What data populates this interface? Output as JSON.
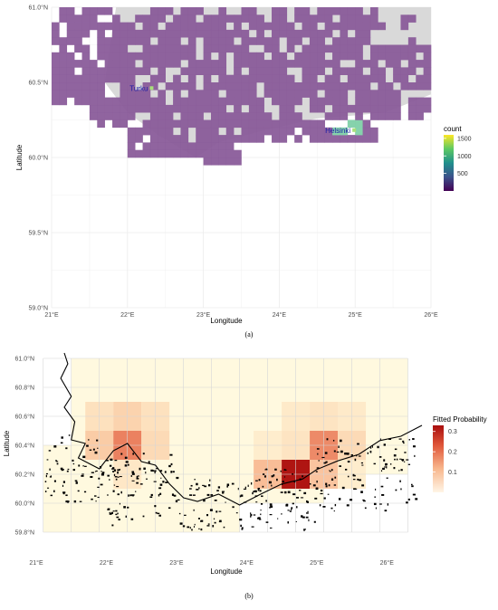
{
  "chart_data": [
    {
      "panel": "(a)",
      "type": "heatmap",
      "xlabel": "Longitude",
      "ylabel": "Latitude",
      "x_ticks": [
        "21°E",
        "22°E",
        "23°E",
        "24°E",
        "25°E",
        "26°E"
      ],
      "y_ticks": [
        "59.0°N",
        "59.5°N",
        "60.0°N",
        "60.5°N",
        "61.0°N"
      ],
      "xlim": [
        21,
        26
      ],
      "ylim": [
        59.0,
        61.0
      ],
      "grid": true,
      "legend": {
        "title": "count",
        "ticks": [
          "1500",
          "1000",
          "500"
        ],
        "tick_values": [
          1500,
          1000,
          500
        ],
        "range": [
          0,
          1600
        ],
        "placement": "right"
      },
      "cities": [
        {
          "name": "Turku",
          "lon": 22.27,
          "lat": 60.45
        },
        {
          "name": "Helsinki",
          "lon": 24.94,
          "lat": 60.17
        }
      ],
      "colors": {
        "cell": "#8a5c9a",
        "land": "#d9d9d9",
        "hot": "#7fd0a8"
      }
    },
    {
      "panel": "(b)",
      "type": "heatmap",
      "xlabel": "Longitude",
      "ylabel": "Latitude",
      "x_ticks": [
        "21°E",
        "22°E",
        "23°E",
        "24°E",
        "25°E",
        "26°E"
      ],
      "y_ticks": [
        "59.8°N",
        "60.0°N",
        "60.2°N",
        "60.4°N",
        "60.6°N",
        "60.8°N",
        "61.0°N"
      ],
      "xlim": [
        21,
        26.5
      ],
      "ylim": [
        59.7,
        61.05
      ],
      "grid": true,
      "legend": {
        "title": "Fitted Probability",
        "ticks": [
          "0.3",
          "0.2",
          "0.1"
        ],
        "tick_values": [
          0.3,
          0.2,
          0.1
        ],
        "range": [
          0,
          0.33
        ],
        "placement": "right"
      },
      "cells": [
        {
          "lon": 21.9,
          "lat": 60.6,
          "p": 0.08
        },
        {
          "lon": 22.3,
          "lat": 60.6,
          "p": 0.1
        },
        {
          "lon": 22.7,
          "lat": 60.6,
          "p": 0.08
        },
        {
          "lon": 21.9,
          "lat": 60.4,
          "p": 0.11
        },
        {
          "lon": 22.3,
          "lat": 60.4,
          "p": 0.2
        },
        {
          "lon": 22.7,
          "lat": 60.4,
          "p": 0.09
        },
        {
          "lon": 22.3,
          "lat": 60.2,
          "p": 0.06
        },
        {
          "lon": 24.3,
          "lat": 60.4,
          "p": 0.04
        },
        {
          "lon": 24.7,
          "lat": 60.4,
          "p": 0.07
        },
        {
          "lon": 25.1,
          "lat": 60.4,
          "p": 0.19
        },
        {
          "lon": 25.5,
          "lat": 60.4,
          "p": 0.09
        },
        {
          "lon": 24.7,
          "lat": 60.6,
          "p": 0.05
        },
        {
          "lon": 25.1,
          "lat": 60.6,
          "p": 0.07
        },
        {
          "lon": 25.5,
          "lat": 60.6,
          "p": 0.05
        },
        {
          "lon": 24.3,
          "lat": 60.2,
          "p": 0.13
        },
        {
          "lon": 24.7,
          "lat": 60.2,
          "p": 0.32
        },
        {
          "lon": 25.1,
          "lat": 60.2,
          "p": 0.12
        },
        {
          "lon": 25.5,
          "lat": 60.2,
          "p": 0.04
        }
      ]
    }
  ],
  "captions": {
    "a": "(a)",
    "b": "(b)"
  }
}
